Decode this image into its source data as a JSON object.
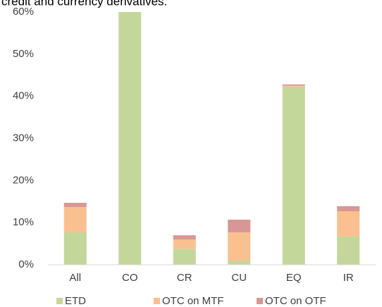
{
  "chart_data": {
    "type": "stacked_bar",
    "title": "credit and currency derivatives.",
    "categories": [
      "All",
      "CO",
      "CR",
      "CU",
      "EQ",
      "IR"
    ],
    "series": [
      {
        "name": "ETD",
        "color": "#c4d79b",
        "values": [
          7.7,
          60,
          3.8,
          1.0,
          42.3,
          6.7
        ]
      },
      {
        "name": "OTC on MTF",
        "color": "#fac090",
        "values": [
          6.0,
          0,
          2.2,
          6.7,
          0.2,
          6.0
        ]
      },
      {
        "name": "OTC on OTF",
        "color": "#d99694",
        "values": [
          1.0,
          0,
          1.0,
          3.0,
          0.3,
          1.2
        ]
      }
    ],
    "ylim": [
      0,
      60
    ],
    "yticks": [
      {
        "value": 0,
        "label": "0%"
      },
      {
        "value": 10,
        "label": "10%"
      },
      {
        "value": 20,
        "label": "20%"
      },
      {
        "value": 30,
        "label": "30%"
      },
      {
        "value": 40,
        "label": "40%"
      },
      {
        "value": 50,
        "label": "50%"
      },
      {
        "value": 60,
        "label": "60%"
      }
    ],
    "grid": false,
    "legend": "bottom"
  }
}
